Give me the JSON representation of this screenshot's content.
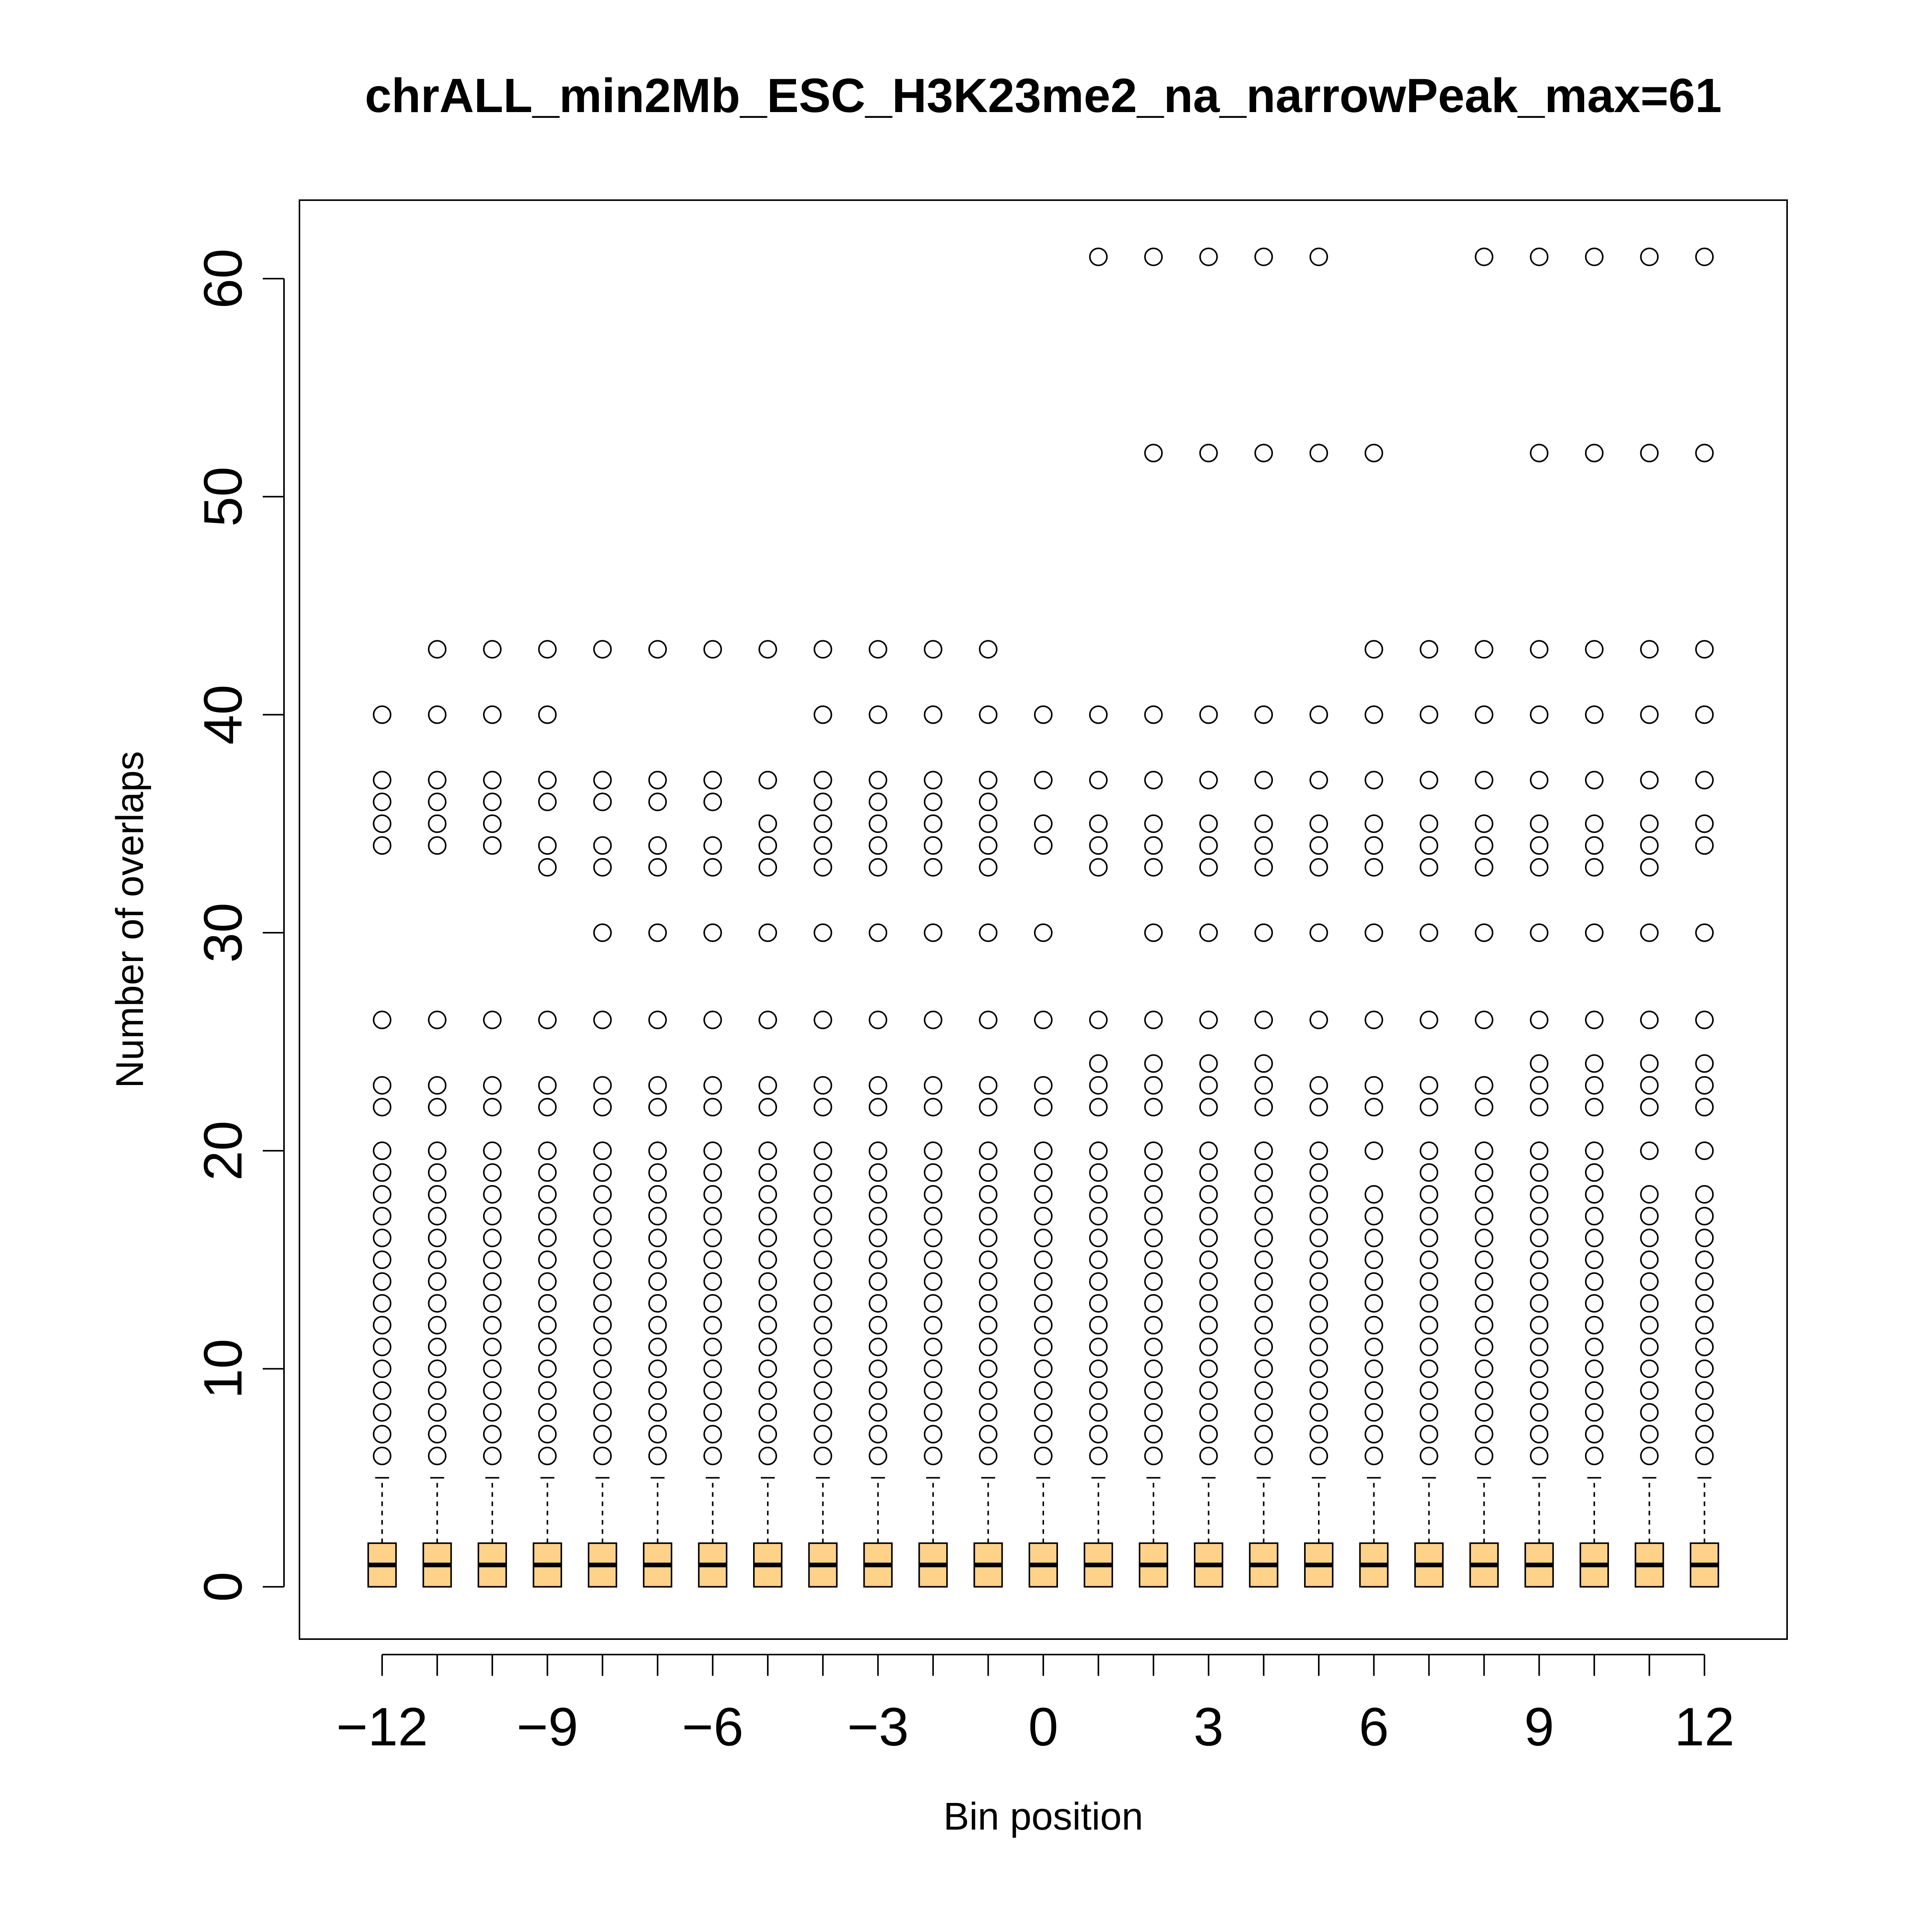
{
  "chart_data": {
    "type": "boxplot",
    "title": "chrALL_min2Mb_ESC_H3K23me2_na_narrowPeak_max=61",
    "xlabel": "Bin position",
    "ylabel": "Number of overlaps",
    "xlim": [
      -13.5,
      13.5
    ],
    "ylim": [
      -2.4,
      63.6
    ],
    "x_ticks": [
      -12,
      -9,
      -6,
      -3,
      0,
      3,
      6,
      9,
      12
    ],
    "x_tick_labels": [
      "−12",
      "−9",
      "−6",
      "−3",
      "0",
      "3",
      "6",
      "9",
      "12"
    ],
    "y_ticks": [
      0,
      10,
      20,
      30,
      40,
      50,
      60
    ],
    "y_tick_labels": [
      "0",
      "10",
      "20",
      "30",
      "40",
      "50",
      "60"
    ],
    "box_color": "#FFD28A",
    "positions": [
      -12,
      -11,
      -10,
      -9,
      -8,
      -7,
      -6,
      -5,
      -4,
      -3,
      -2,
      -1,
      0,
      1,
      2,
      3,
      4,
      5,
      6,
      7,
      8,
      9,
      10,
      11,
      12
    ],
    "box_stats": {
      "whisker_low": 0,
      "q1": 0,
      "median": 1,
      "q3": 2,
      "whisker_high": 5
    },
    "outliers": [
      [
        6,
        7,
        8,
        9,
        10,
        11,
        12,
        13,
        14,
        15,
        16,
        17,
        18,
        19,
        20,
        22,
        23,
        26,
        34,
        35,
        36,
        37,
        40
      ],
      [
        6,
        7,
        8,
        9,
        10,
        11,
        12,
        13,
        14,
        15,
        16,
        17,
        18,
        19,
        20,
        22,
        23,
        26,
        34,
        35,
        36,
        37,
        40,
        43
      ],
      [
        6,
        7,
        8,
        9,
        10,
        11,
        12,
        13,
        14,
        15,
        16,
        17,
        18,
        19,
        20,
        22,
        23,
        26,
        34,
        35,
        36,
        37,
        40,
        43
      ],
      [
        6,
        7,
        8,
        9,
        10,
        11,
        12,
        13,
        14,
        15,
        16,
        17,
        18,
        19,
        20,
        22,
        23,
        26,
        33,
        34,
        36,
        37,
        40,
        43
      ],
      [
        6,
        7,
        8,
        9,
        10,
        11,
        12,
        13,
        14,
        15,
        16,
        17,
        18,
        19,
        20,
        22,
        23,
        26,
        30,
        33,
        34,
        36,
        37,
        43
      ],
      [
        6,
        7,
        8,
        9,
        10,
        11,
        12,
        13,
        14,
        15,
        16,
        17,
        18,
        19,
        20,
        22,
        23,
        26,
        30,
        33,
        34,
        36,
        37,
        43
      ],
      [
        6,
        7,
        8,
        9,
        10,
        11,
        12,
        13,
        14,
        15,
        16,
        17,
        18,
        19,
        20,
        22,
        23,
        26,
        30,
        33,
        34,
        36,
        37,
        43
      ],
      [
        6,
        7,
        8,
        9,
        10,
        11,
        12,
        13,
        14,
        15,
        16,
        17,
        18,
        19,
        20,
        22,
        23,
        26,
        30,
        33,
        34,
        35,
        37,
        43
      ],
      [
        6,
        7,
        8,
        9,
        10,
        11,
        12,
        13,
        14,
        15,
        16,
        17,
        18,
        19,
        20,
        22,
        23,
        26,
        30,
        33,
        34,
        35,
        36,
        37,
        40,
        43
      ],
      [
        6,
        7,
        8,
        9,
        10,
        11,
        12,
        13,
        14,
        15,
        16,
        17,
        18,
        19,
        20,
        22,
        23,
        26,
        30,
        33,
        34,
        35,
        36,
        37,
        40,
        43
      ],
      [
        6,
        7,
        8,
        9,
        10,
        11,
        12,
        13,
        14,
        15,
        16,
        17,
        18,
        19,
        20,
        22,
        23,
        26,
        30,
        33,
        34,
        35,
        36,
        37,
        40,
        43
      ],
      [
        6,
        7,
        8,
        9,
        10,
        11,
        12,
        13,
        14,
        15,
        16,
        17,
        18,
        19,
        20,
        22,
        23,
        26,
        30,
        33,
        34,
        35,
        36,
        37,
        40,
        43
      ],
      [
        6,
        7,
        8,
        9,
        10,
        11,
        12,
        13,
        14,
        15,
        16,
        17,
        18,
        19,
        20,
        22,
        23,
        26,
        30,
        34,
        35,
        37,
        40
      ],
      [
        6,
        7,
        8,
        9,
        10,
        11,
        12,
        13,
        14,
        15,
        16,
        17,
        18,
        19,
        20,
        22,
        23,
        24,
        26,
        33,
        34,
        35,
        37,
        40,
        61
      ],
      [
        6,
        7,
        8,
        9,
        10,
        11,
        12,
        13,
        14,
        15,
        16,
        17,
        18,
        19,
        20,
        22,
        23,
        24,
        26,
        30,
        33,
        34,
        35,
        37,
        40,
        52,
        61
      ],
      [
        6,
        7,
        8,
        9,
        10,
        11,
        12,
        13,
        14,
        15,
        16,
        17,
        18,
        19,
        20,
        22,
        23,
        24,
        26,
        30,
        33,
        34,
        35,
        37,
        40,
        52,
        61
      ],
      [
        6,
        7,
        8,
        9,
        10,
        11,
        12,
        13,
        14,
        15,
        16,
        17,
        18,
        19,
        20,
        22,
        23,
        24,
        26,
        30,
        33,
        34,
        35,
        37,
        40,
        52,
        61
      ],
      [
        6,
        7,
        8,
        9,
        10,
        11,
        12,
        13,
        14,
        15,
        16,
        17,
        18,
        19,
        20,
        22,
        23,
        26,
        30,
        33,
        34,
        35,
        37,
        40,
        52,
        61
      ],
      [
        6,
        7,
        8,
        9,
        10,
        11,
        12,
        13,
        14,
        15,
        16,
        17,
        18,
        20,
        22,
        23,
        26,
        30,
        33,
        34,
        35,
        37,
        40,
        43,
        52
      ],
      [
        6,
        7,
        8,
        9,
        10,
        11,
        12,
        13,
        14,
        15,
        16,
        17,
        18,
        19,
        20,
        22,
        23,
        26,
        30,
        33,
        34,
        35,
        37,
        40,
        43
      ],
      [
        6,
        7,
        8,
        9,
        10,
        11,
        12,
        13,
        14,
        15,
        16,
        17,
        18,
        19,
        20,
        22,
        23,
        26,
        30,
        33,
        34,
        35,
        37,
        40,
        43,
        61
      ],
      [
        6,
        7,
        8,
        9,
        10,
        11,
        12,
        13,
        14,
        15,
        16,
        17,
        18,
        19,
        20,
        22,
        23,
        24,
        26,
        30,
        33,
        34,
        35,
        37,
        40,
        43,
        52,
        61
      ],
      [
        6,
        7,
        8,
        9,
        10,
        11,
        12,
        13,
        14,
        15,
        16,
        17,
        18,
        19,
        20,
        22,
        23,
        24,
        26,
        30,
        33,
        34,
        35,
        37,
        40,
        43,
        52,
        61
      ],
      [
        6,
        7,
        8,
        9,
        10,
        11,
        12,
        13,
        14,
        15,
        16,
        17,
        18,
        20,
        22,
        23,
        24,
        26,
        30,
        33,
        34,
        35,
        37,
        40,
        43,
        52,
        61
      ],
      [
        6,
        7,
        8,
        9,
        10,
        11,
        12,
        13,
        14,
        15,
        16,
        17,
        18,
        20,
        22,
        23,
        24,
        26,
        30,
        34,
        35,
        37,
        40,
        43,
        52,
        61
      ]
    ]
  }
}
